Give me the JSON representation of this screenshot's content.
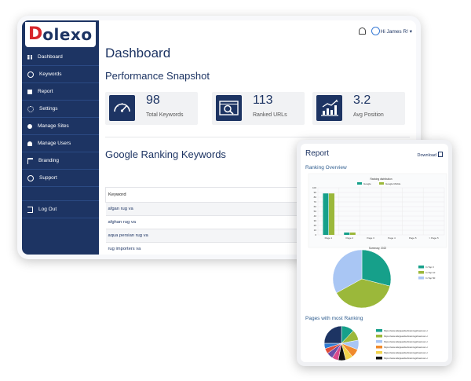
{
  "brand": {
    "logo_letter": "D",
    "logo_rest": "olexo"
  },
  "header": {
    "greeting": "Hi James R!",
    "bell_icon": "bell-icon",
    "avatar_icon": "avatar-icon"
  },
  "sidebar": {
    "items": [
      {
        "label": "Dashboard",
        "icon": "grid-icon"
      },
      {
        "label": "Keywords",
        "icon": "key-icon"
      },
      {
        "label": "Report",
        "icon": "document-icon"
      },
      {
        "label": "Settings",
        "icon": "gear-icon"
      },
      {
        "label": "Manage Sites",
        "icon": "site-icon"
      },
      {
        "label": "Manage Users",
        "icon": "users-icon"
      },
      {
        "label": "Branding",
        "icon": "flag-icon"
      },
      {
        "label": "Support",
        "icon": "support-icon"
      }
    ],
    "logout": {
      "label": "Log Out",
      "icon": "logout-icon"
    }
  },
  "dashboard": {
    "title": "Dashboard",
    "snapshot_title": "Performance Snapshot",
    "stats": [
      {
        "value": "98",
        "label": "Total Keywords",
        "icon": "gauge-icon"
      },
      {
        "value": "113",
        "label": "Ranked URLs",
        "icon": "search-url-icon"
      },
      {
        "value": "3.2",
        "label": "Avg Position",
        "icon": "chart-up-icon"
      }
    ],
    "ranking_title": "Google Ranking Keywords",
    "table": {
      "header": "Keyword",
      "rows": [
        "afgan rug va",
        "afghan rug va",
        "aqua persian rug va",
        "rug importers va"
      ]
    }
  },
  "report": {
    "title": "Report",
    "download_label": "Download",
    "overview_title": "Ranking Overview",
    "pages_title": "Pages with most Ranking"
  },
  "colors": {
    "navy": "#1d3463",
    "brand_red": "#d7262b",
    "teal": "#16a08a",
    "olive": "#9bb83a",
    "light_blue": "#a9c6f4"
  },
  "chart_data": [
    {
      "type": "bar",
      "title": "Ranking distribution",
      "categories": [
        "Page 1",
        "Page 2",
        "Page 3",
        "Page 4",
        "Page 5",
        "> Page 5"
      ],
      "series": [
        {
          "name": "Google",
          "values": [
            88,
            5,
            0,
            0,
            0,
            0
          ],
          "color": "#16a08a"
        },
        {
          "name": "Google Mobile",
          "values": [
            88,
            5,
            0,
            0,
            0,
            0
          ],
          "color": "#9bb83a"
        }
      ],
      "yticks": [
        "0",
        "10",
        "20",
        "30",
        "40",
        "50",
        "60",
        "70",
        "80",
        "90",
        "100"
      ],
      "ylim": [
        0,
        100
      ],
      "legend": "top"
    },
    {
      "type": "pie",
      "title": "Summary, 2022",
      "slices": [
        {
          "label": "In Top 3",
          "value": 29,
          "color": "#16a08a"
        },
        {
          "label": "In Top 10",
          "value": 38,
          "color": "#9bb83a"
        },
        {
          "label": "In Top 50",
          "value": 33,
          "color": "#a9c6f4"
        }
      ],
      "legend": "right"
    },
    {
      "type": "pie",
      "slices": [
        {
          "label": "https://www.afarguardsofmainrugshowroom.c",
          "value": 12,
          "color": "#16a08a"
        },
        {
          "label": "https://www.afarguardsofmainrugshowroom.c",
          "value": 10,
          "color": "#9bb83a"
        },
        {
          "label": "https://www.afarguardsofmainrugshowroom.c",
          "value": 9,
          "color": "#a9c6f4"
        },
        {
          "label": "https://www.afarguardsofmainrugshowroom.c",
          "value": 8,
          "color": "#f08a2c"
        },
        {
          "label": "https://www.afarguardsofmainrugshowroom.c",
          "value": 7,
          "color": "#f2d34a"
        },
        {
          "label": "https://www.afarguardsofmainrugshowroom.c",
          "value": 7,
          "color": "#111111"
        },
        {
          "label": "",
          "value": 6,
          "color": "#d94a8c"
        },
        {
          "label": "",
          "value": 6,
          "color": "#6a4fa8"
        },
        {
          "label": "",
          "value": 5,
          "color": "#e04b3a"
        },
        {
          "label": "",
          "value": 5,
          "color": "#2f7bd1"
        },
        {
          "label": "",
          "value": 25,
          "color": "#1d3463"
        }
      ],
      "legend": "right"
    }
  ]
}
